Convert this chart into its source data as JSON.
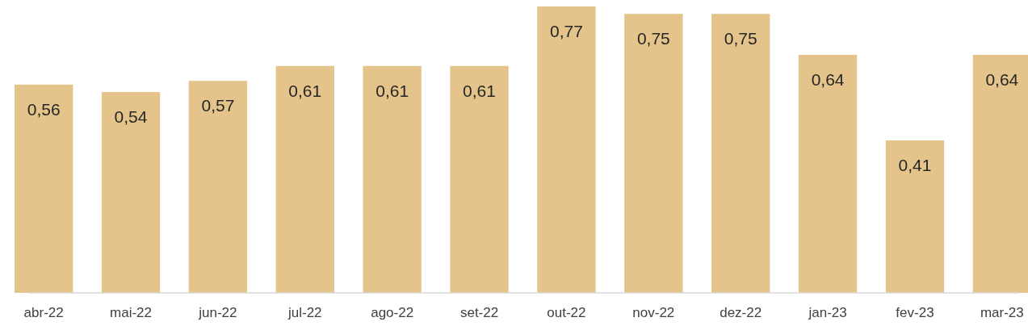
{
  "chart_data": {
    "type": "bar",
    "categories": [
      "abr-22",
      "mai-22",
      "jun-22",
      "jul-22",
      "ago-22",
      "set-22",
      "out-22",
      "nov-22",
      "dez-22",
      "jan-23",
      "fev-23",
      "mar-23"
    ],
    "values": [
      0.56,
      0.54,
      0.57,
      0.61,
      0.61,
      0.61,
      0.77,
      0.75,
      0.75,
      0.64,
      0.41,
      0.64
    ],
    "value_labels": [
      "0,56",
      "0,54",
      "0,57",
      "0,61",
      "0,61",
      "0,61",
      "0,77",
      "0,75",
      "0,75",
      "0,64",
      "0,41",
      "0,64"
    ],
    "color": "#e4c48a",
    "ylim": [
      0,
      0.77
    ]
  }
}
